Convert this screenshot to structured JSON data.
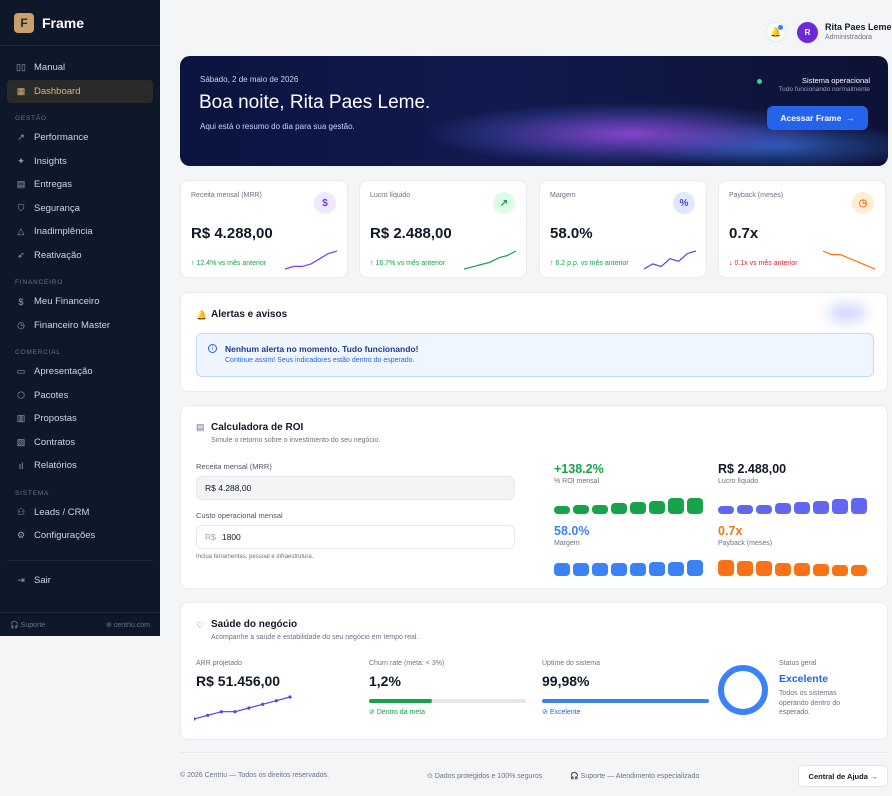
{
  "brand": {
    "logo_letter": "F",
    "name": "Frame"
  },
  "sidebar": {
    "top": [
      {
        "label": "Manual",
        "icon": "book-icon"
      },
      {
        "label": "Dashboard",
        "icon": "grid-icon",
        "active": true
      }
    ],
    "sections": [
      {
        "title": "GESTÃO",
        "items": [
          {
            "label": "Performance",
            "icon": "trend-icon"
          },
          {
            "label": "Insights",
            "icon": "sparkle-icon"
          },
          {
            "label": "Entregas",
            "icon": "clipboard-icon"
          },
          {
            "label": "Segurança",
            "icon": "shield-icon"
          },
          {
            "label": "Inadimplência",
            "icon": "warning-icon"
          },
          {
            "label": "Reativação",
            "icon": "rocket-icon"
          }
        ]
      },
      {
        "title": "FINANCEIRO",
        "items": [
          {
            "label": "Meu Financeiro",
            "icon": "dollar-icon"
          },
          {
            "label": "Financeiro Master",
            "icon": "clock-icon"
          }
        ]
      },
      {
        "title": "COMERCIAL",
        "items": [
          {
            "label": "Apresentação",
            "icon": "monitor-icon"
          },
          {
            "label": "Pacotes",
            "icon": "package-icon"
          },
          {
            "label": "Propostas",
            "icon": "document-icon"
          },
          {
            "label": "Contratos",
            "icon": "contract-icon"
          },
          {
            "label": "Relatórios",
            "icon": "bar-chart-icon"
          }
        ]
      },
      {
        "title": "SISTEMA",
        "items": [
          {
            "label": "Leads / CRM",
            "icon": "users-icon"
          },
          {
            "label": "Configurações",
            "icon": "gear-icon"
          }
        ]
      }
    ],
    "logout": "Sair",
    "footer_left": "Suporte",
    "footer_right": "centriu.com"
  },
  "topbar": {
    "avatar_letter": "R",
    "user_name": "Rita Paes Leme",
    "user_role": "Administradora"
  },
  "hero": {
    "date": "Sábado, 2 de maio de 2026",
    "title": "Boa noite, Rita Paes Leme.",
    "subtitle": "Aqui está o resumo do dia para sua gestão.",
    "status_title": "Sistema operacional",
    "status_sub": "Tudo funcionando normalmente",
    "button": "Acessar Frame"
  },
  "kpis": [
    {
      "label": "Receita mensal (MRR)",
      "value": "R$ 4.288,00",
      "delta": "↑ 12.4% vs mês anterior",
      "icon_glyph": "$",
      "trend": "up",
      "color": "#7c3aed",
      "spark": [
        3,
        4,
        4,
        5,
        7,
        9,
        10
      ]
    },
    {
      "label": "Lucro líquido",
      "value": "R$ 2.488,00",
      "delta": "↑ 16.7% vs mês anterior",
      "icon_glyph": "↗",
      "trend": "up",
      "color": "#16a34a",
      "spark": [
        2,
        3,
        4,
        5,
        7,
        8,
        10
      ]
    },
    {
      "label": "Margem",
      "value": "58.0%",
      "delta": "↑ 6.2 p.p. vs mês anterior",
      "icon_glyph": "%",
      "trend": "up",
      "color": "#4f46e5",
      "spark": [
        3,
        5,
        4,
        7,
        6,
        9,
        10
      ]
    },
    {
      "label": "Payback (meses)",
      "value": "0.7x",
      "delta": "↓ 0.1x vs mês anterior",
      "icon_glyph": "◷",
      "trend": "down",
      "color": "#f97316",
      "spark": [
        10,
        9,
        9,
        8,
        7,
        6,
        5
      ]
    }
  ],
  "alerts": {
    "title": "Alertas e avisos",
    "box_title": "Nenhum alerta no momento. Tudo funcionando!",
    "box_text": "Continue assim! Seus indicadores estão dentro do esperado."
  },
  "roi": {
    "title": "Calculadora de ROI",
    "subtitle": "Simule o retorno sobre o investimento do seu negócio.",
    "revenue_label": "Receita mensal (MRR)",
    "revenue_value": "R$ 4.288,00",
    "cost_label": "Custo operacional mensal",
    "cost_prefix": "R$",
    "cost_value": "1800",
    "cost_help": "Inclua ferramentas, pessoal e infraestrutura.",
    "metrics": [
      {
        "value": "+138.2%",
        "label": "% ROI mensal",
        "color": "#16a34a",
        "bars": [
          3,
          4,
          4,
          5,
          6,
          7,
          9,
          9
        ]
      },
      {
        "value": "R$ 2.488,00",
        "label": "Lucro líquido",
        "color": "#6366f1",
        "bars": [
          3,
          4,
          4,
          5,
          6,
          7,
          8,
          9
        ]
      },
      {
        "value": "58.0%",
        "label": "Margem",
        "color": "#3b82f6",
        "bars": [
          5,
          5,
          5,
          5,
          5,
          6,
          6,
          7
        ]
      },
      {
        "value": "0.7x",
        "label": "Payback (meses)",
        "color": "#f97316",
        "bars": [
          9,
          8,
          8,
          7,
          7,
          6,
          5,
          5
        ]
      }
    ]
  },
  "health": {
    "title": "Saúde do negócio",
    "subtitle": "Acompanhe a saúde e estabilidade do seu negócio em tempo real.",
    "arr_label": "ARR projetado",
    "arr_value": "R$ 51.456,00",
    "arr_spark": [
      2,
      3,
      4,
      4,
      5,
      6,
      7,
      8
    ],
    "churn_label": "Churn rate (meta: < 3%)",
    "churn_value": "1,2%",
    "churn_progress": 0.4,
    "churn_note": "Dentro da meta",
    "uptime_label": "Uptime do sistema",
    "uptime_value": "99,98%",
    "uptime_progress": 0.9998,
    "uptime_note": "Excelente",
    "status_label": "Status geral",
    "status_value": "Excelente",
    "status_text": "Todos os sistemas operando dentro do esperado."
  },
  "footer": {
    "copyright": "© 2026 Centriu — Todos os direitos reservados.",
    "security": "Dados protegidos e 100% seguros",
    "support": "Suporte — Atendimento especializado",
    "help_button": "Central de Ajuda →"
  }
}
